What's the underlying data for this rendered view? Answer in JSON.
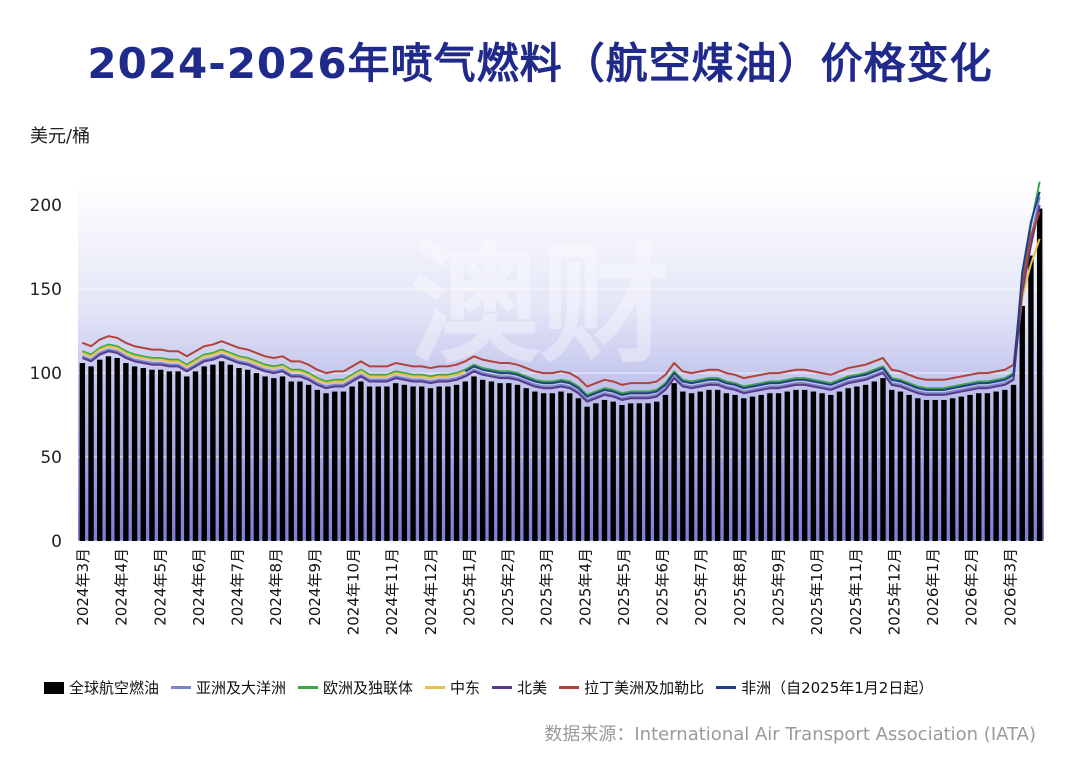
{
  "title": "2024-2026年喷气燃料（航空煤油）价格变化",
  "source": "数据来源：International Air Transport Association (IATA)",
  "watermark": "澳财",
  "chart_data": {
    "type": "bar",
    "ylabel": "美元/桶",
    "ylim": [
      0,
      215
    ],
    "yticks": [
      0,
      50,
      100,
      150,
      200
    ],
    "grid": true,
    "legend_position": "bottom",
    "x_month_labels": [
      "2024年3月",
      "2024年4月",
      "2024年5月",
      "2024年6月",
      "2024年7月",
      "2024年8月",
      "2024年9月",
      "2024年10月",
      "2024年11月",
      "2024年12月",
      "2025年1月",
      "2025年2月",
      "2025年3月",
      "2025年4月",
      "2025年5月",
      "2025年6月",
      "2025年7月",
      "2025年8月",
      "2025年9月",
      "2025年10月",
      "2025年11月",
      "2025年12月",
      "2026年1月",
      "2026年2月",
      "2026年3月"
    ],
    "bar_series": {
      "name": "全球航空燃油",
      "color": "#000000",
      "values": [
        106,
        104,
        108,
        110,
        109,
        106,
        104,
        103,
        102,
        102,
        101,
        101,
        98,
        101,
        104,
        105,
        107,
        105,
        103,
        102,
        100,
        98,
        97,
        98,
        95,
        95,
        93,
        90,
        88,
        89,
        89,
        92,
        95,
        92,
        92,
        92,
        94,
        93,
        92,
        92,
        91,
        92,
        92,
        93,
        95,
        98,
        96,
        95,
        94,
        94,
        93,
        91,
        89,
        88,
        88,
        89,
        88,
        85,
        80,
        82,
        84,
        83,
        81,
        82,
        82,
        82,
        83,
        87,
        94,
        89,
        88,
        89,
        90,
        90,
        88,
        87,
        85,
        86,
        87,
        88,
        88,
        89,
        90,
        90,
        89,
        88,
        87,
        89,
        91,
        92,
        93,
        95,
        97,
        90,
        89,
        87,
        85,
        84,
        84,
        84,
        85,
        86,
        87,
        88,
        88,
        89,
        90,
        93,
        140,
        170,
        198
      ]
    },
    "line_series": [
      {
        "name": "亚洲及大洋洲",
        "color": "#7a86cc",
        "values": [
          110,
          108,
          112,
          114,
          113,
          110,
          108,
          107,
          106,
          106,
          105,
          105,
          102,
          105,
          108,
          109,
          111,
          109,
          107,
          106,
          104,
          102,
          101,
          102,
          99,
          99,
          97,
          94,
          92,
          93,
          93,
          96,
          99,
          96,
          96,
          96,
          98,
          97,
          96,
          96,
          95,
          96,
          96,
          97,
          99,
          102,
          100,
          99,
          98,
          98,
          97,
          95,
          93,
          92,
          92,
          93,
          92,
          89,
          84,
          86,
          88,
          87,
          85,
          86,
          86,
          86,
          87,
          91,
          98,
          93,
          92,
          93,
          94,
          94,
          92,
          91,
          89,
          90,
          91,
          92,
          92,
          93,
          94,
          94,
          93,
          92,
          91,
          93,
          95,
          96,
          97,
          99,
          101,
          94,
          93,
          91,
          89,
          88,
          88,
          88,
          89,
          90,
          91,
          92,
          92,
          93,
          94,
          97,
          150,
          180,
          205
        ]
      },
      {
        "name": "欧洲及独联体",
        "color": "#3aa844",
        "values": [
          113,
          111,
          115,
          117,
          116,
          113,
          111,
          110,
          109,
          109,
          108,
          108,
          105,
          108,
          111,
          112,
          114,
          112,
          110,
          109,
          107,
          105,
          104,
          105,
          102,
          102,
          100,
          97,
          95,
          96,
          96,
          99,
          102,
          99,
          99,
          99,
          101,
          100,
          99,
          99,
          98,
          99,
          99,
          100,
          102,
          105,
          103,
          102,
          101,
          101,
          100,
          98,
          96,
          95,
          95,
          96,
          95,
          92,
          87,
          89,
          91,
          90,
          88,
          89,
          89,
          89,
          90,
          94,
          101,
          96,
          95,
          96,
          97,
          97,
          95,
          94,
          92,
          93,
          94,
          95,
          95,
          96,
          97,
          97,
          96,
          95,
          94,
          96,
          98,
          99,
          100,
          102,
          104,
          97,
          96,
          94,
          92,
          91,
          91,
          91,
          92,
          93,
          94,
          95,
          95,
          96,
          97,
          100,
          155,
          188,
          214
        ]
      },
      {
        "name": "中东",
        "color": "#e8c14a",
        "values": [
          112,
          110,
          114,
          116,
          115,
          112,
          110,
          109,
          108,
          108,
          107,
          107,
          104,
          107,
          110,
          111,
          113,
          111,
          109,
          108,
          106,
          104,
          103,
          104,
          101,
          101,
          99,
          96,
          94,
          95,
          95,
          98,
          101,
          98,
          98,
          98,
          100,
          99,
          98,
          98,
          97,
          98,
          98,
          99,
          101,
          104,
          102,
          101,
          100,
          100,
          99,
          97,
          95,
          94,
          94,
          95,
          94,
          91,
          86,
          88,
          90,
          89,
          87,
          88,
          88,
          88,
          89,
          93,
          100,
          95,
          94,
          95,
          96,
          96,
          94,
          93,
          91,
          92,
          93,
          94,
          94,
          95,
          96,
          96,
          95,
          94,
          93,
          95,
          97,
          98,
          99,
          101,
          103,
          96,
          95,
          93,
          91,
          90,
          90,
          90,
          91,
          92,
          93,
          94,
          94,
          95,
          96,
          99,
          145,
          165,
          180
        ]
      },
      {
        "name": "北美",
        "color": "#5a3a8a",
        "values": [
          109,
          107,
          111,
          113,
          112,
          109,
          107,
          106,
          105,
          105,
          104,
          104,
          101,
          104,
          107,
          108,
          110,
          108,
          106,
          105,
          103,
          101,
          100,
          101,
          98,
          98,
          96,
          93,
          91,
          92,
          92,
          95,
          98,
          95,
          95,
          95,
          97,
          96,
          95,
          95,
          94,
          95,
          95,
          96,
          98,
          101,
          99,
          98,
          97,
          97,
          96,
          94,
          92,
          91,
          91,
          92,
          91,
          88,
          83,
          85,
          87,
          86,
          84,
          85,
          85,
          85,
          86,
          90,
          97,
          92,
          91,
          92,
          93,
          93,
          91,
          90,
          88,
          89,
          90,
          91,
          91,
          92,
          93,
          93,
          92,
          91,
          90,
          92,
          94,
          95,
          96,
          98,
          100,
          93,
          92,
          90,
          88,
          87,
          87,
          87,
          88,
          89,
          90,
          91,
          91,
          92,
          93,
          96,
          148,
          176,
          200
        ]
      },
      {
        "name": "拉丁美洲及加勒比",
        "color": "#b0443a",
        "values": [
          118,
          116,
          120,
          122,
          121,
          118,
          116,
          115,
          114,
          114,
          113,
          113,
          110,
          113,
          116,
          117,
          119,
          117,
          115,
          114,
          112,
          110,
          109,
          110,
          107,
          107,
          105,
          102,
          100,
          101,
          101,
          104,
          107,
          104,
          104,
          104,
          106,
          105,
          104,
          104,
          103,
          104,
          104,
          105,
          107,
          110,
          108,
          107,
          106,
          106,
          105,
          103,
          101,
          100,
          100,
          101,
          100,
          97,
          92,
          94,
          96,
          95,
          93,
          94,
          94,
          94,
          95,
          99,
          106,
          101,
          100,
          101,
          102,
          102,
          100,
          99,
          97,
          98,
          99,
          100,
          100,
          101,
          102,
          102,
          101,
          100,
          99,
          101,
          103,
          104,
          105,
          107,
          109,
          102,
          101,
          99,
          97,
          96,
          96,
          96,
          97,
          98,
          99,
          100,
          100,
          101,
          102,
          105,
          152,
          182,
          196
        ]
      },
      {
        "name": "非洲（自2025年1月2日起）",
        "color": "#1f3f8a",
        "values": [
          null,
          null,
          null,
          null,
          null,
          null,
          null,
          null,
          null,
          null,
          null,
          null,
          null,
          null,
          null,
          null,
          null,
          null,
          null,
          null,
          null,
          null,
          null,
          null,
          null,
          null,
          null,
          null,
          null,
          null,
          null,
          null,
          null,
          null,
          null,
          null,
          null,
          null,
          null,
          null,
          null,
          null,
          null,
          null,
          101,
          104,
          102,
          101,
          100,
          100,
          99,
          97,
          95,
          94,
          94,
          95,
          94,
          91,
          86,
          88,
          90,
          89,
          87,
          88,
          88,
          88,
          89,
          93,
          100,
          95,
          94,
          95,
          96,
          96,
          94,
          93,
          91,
          92,
          93,
          94,
          94,
          95,
          96,
          96,
          95,
          94,
          93,
          95,
          97,
          98,
          99,
          101,
          103,
          96,
          95,
          93,
          91,
          90,
          90,
          90,
          91,
          92,
          93,
          94,
          94,
          95,
          96,
          99,
          160,
          190,
          208
        ]
      }
    ]
  }
}
